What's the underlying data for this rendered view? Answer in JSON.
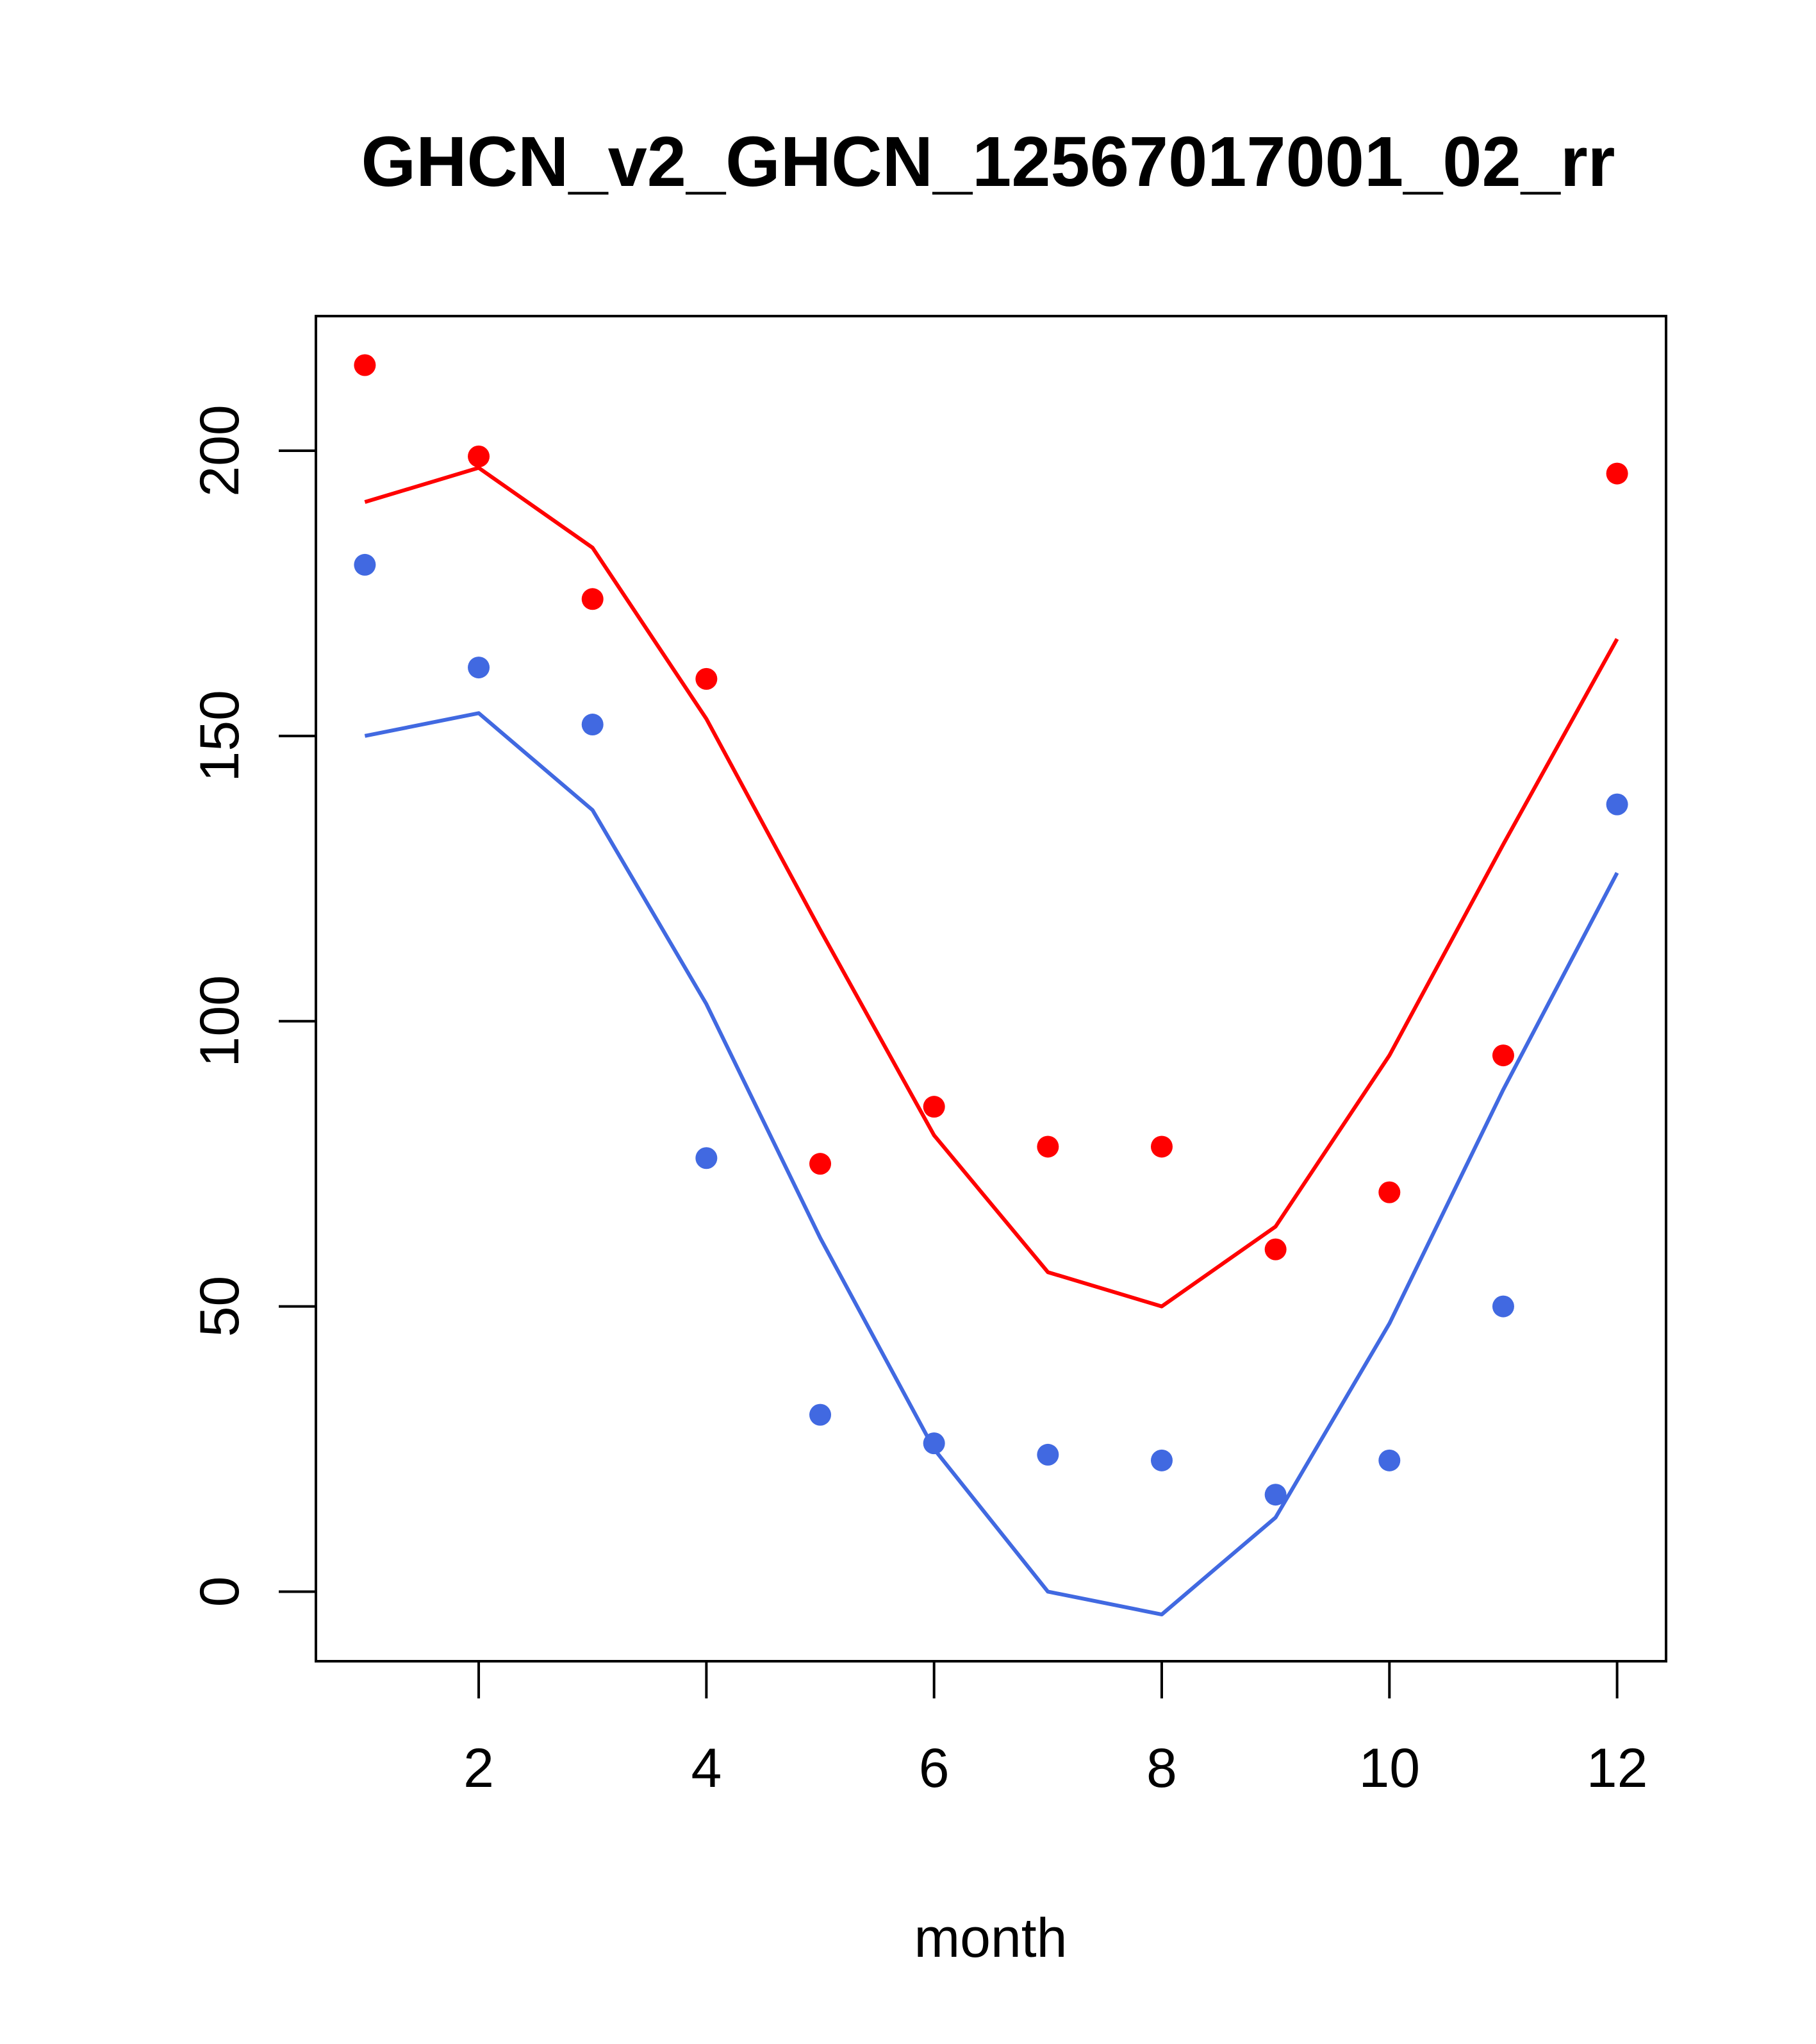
{
  "chart_data": {
    "type": "line",
    "title": "GHCN_v2_GHCN_12567017001_02_rr",
    "xlabel": "month",
    "ylabel": "",
    "xlim": [
      0.57,
      12.43
    ],
    "ylim": [
      -12.2,
      223.6
    ],
    "x_ticks": [
      2,
      4,
      6,
      8,
      10,
      12
    ],
    "y_ticks": [
      0,
      50,
      100,
      150,
      200
    ],
    "grid": false,
    "legend": "none",
    "series": [
      {
        "color": "#ff0000",
        "kind": "line",
        "x": [
          1,
          2,
          3,
          4,
          5,
          6,
          7,
          8,
          9,
          10,
          11,
          12
        ],
        "values": [
          191,
          197,
          183,
          153,
          116,
          80,
          56,
          50,
          64,
          94,
          131,
          167
        ]
      },
      {
        "color": "#ff0000",
        "kind": "points",
        "x": [
          1,
          2,
          3,
          4,
          5,
          6,
          7,
          8,
          9,
          10,
          11,
          12
        ],
        "values": [
          215,
          199,
          174,
          160,
          75,
          85,
          78,
          78,
          60,
          70,
          94,
          196
        ]
      },
      {
        "color": "#4169e1",
        "kind": "line",
        "x": [
          1,
          2,
          3,
          4,
          5,
          6,
          7,
          8,
          9,
          10,
          11,
          12
        ],
        "values": [
          150,
          154,
          137,
          103,
          62,
          25,
          0,
          -4,
          13,
          47,
          88,
          126
        ]
      },
      {
        "color": "#4169e1",
        "kind": "points",
        "x": [
          1,
          2,
          3,
          4,
          5,
          6,
          7,
          8,
          9,
          10,
          11,
          12
        ],
        "values": [
          180,
          162,
          152,
          76,
          31,
          26,
          24,
          23,
          17,
          23,
          50,
          138
        ]
      }
    ]
  }
}
